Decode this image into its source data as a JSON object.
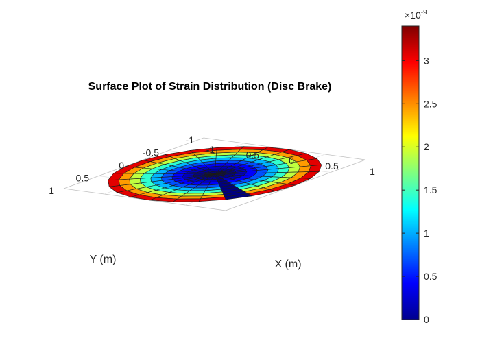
{
  "chart_data": {
    "type": "surface",
    "title": "Surface Plot of Strain Distribution (Disc Brake)",
    "xlabel": "X (m)",
    "ylabel": "Y (m)",
    "xlim": [
      -1,
      1
    ],
    "ylim": [
      -1,
      1
    ],
    "x_ticks": [
      "-1",
      "-0.5",
      "0",
      "0.5",
      "1"
    ],
    "y_ticks": [
      "-1",
      "-0.5",
      "0",
      "0.5",
      "1"
    ],
    "grid": "on",
    "colormap": "jet",
    "radial_rings": 10,
    "angular_segments": 25,
    "disc_radius": 1,
    "strain_model": "proportional to radius squared",
    "strain_max": 3.4e-09,
    "low_strain_sector": "one angular segment at strain 0",
    "colorbar": {
      "location": "right",
      "clim": [
        0,
        3.4e-09
      ],
      "exponent_label": "×10",
      "exponent": "-9",
      "ticks": [
        {
          "value": 0,
          "label": "0"
        },
        {
          "value": 0.5,
          "label": "0.5"
        },
        {
          "value": 1,
          "label": "1"
        },
        {
          "value": 1.5,
          "label": "1.5"
        },
        {
          "value": 2,
          "label": "2"
        },
        {
          "value": 2.5,
          "label": "2.5"
        },
        {
          "value": 3,
          "label": "3"
        }
      ]
    }
  }
}
